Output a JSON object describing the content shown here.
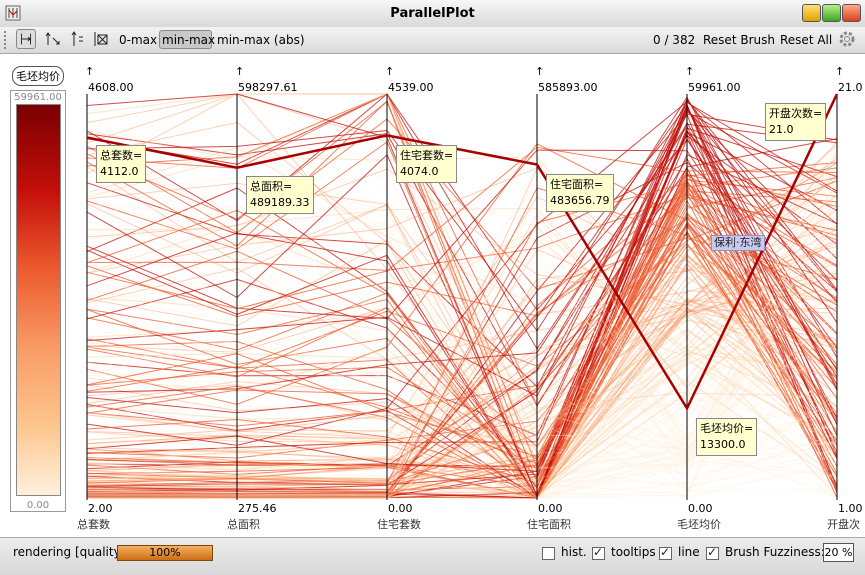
{
  "window": {
    "title": "ParallelPlot"
  },
  "toolbar": {
    "icons": [
      "axis-mode-icon",
      "brush-up-icon",
      "brush-split-icon",
      "clear-brush-icon"
    ],
    "scale_options": [
      "0-max",
      "min-max",
      "min-max (abs)"
    ],
    "selected_scale": "min-max",
    "count": "0 / 382",
    "reset_brush": "Reset Brush",
    "reset_all": "Reset All"
  },
  "legend": {
    "title": "毛坯均价",
    "max": "59961.00",
    "min": "0.00",
    "colors": [
      "#7a0000",
      "#c40f0a",
      "#ec5a2e",
      "#f99a64",
      "#fdc58d",
      "#fff0dc"
    ]
  },
  "axes": [
    {
      "name": "总套数",
      "max": "4608.00",
      "min": "2.00"
    },
    {
      "name": "总面积",
      "max": "598297.61",
      "min": "275.46"
    },
    {
      "name": "住宅套数",
      "max": "4539.00",
      "min": "0.00"
    },
    {
      "name": "住宅面积",
      "max": "585893.00",
      "min": "0.00"
    },
    {
      "name": "毛坯均价",
      "max": "59961.00",
      "min": "0.00"
    },
    {
      "name": "开盘次",
      "max": "21.0",
      "min": "1.00"
    }
  ],
  "highlight": {
    "label": "保利·东湾",
    "values": [
      4112,
      489189.33,
      4074,
      483656.79,
      13300,
      21
    ],
    "tooltips": [
      {
        "label": "总套数=",
        "value": "4112.0"
      },
      {
        "label": "总面积=",
        "value": "489189.33"
      },
      {
        "label": "住宅套数=",
        "value": "4074.0"
      },
      {
        "label": "住宅面积=",
        "value": "483656.79"
      },
      {
        "label": "毛坯均价=",
        "value": "13300.0"
      },
      {
        "label": "开盘次数=",
        "value": "21.0"
      }
    ]
  },
  "status": {
    "rendering_label": "rendering [quality]",
    "progress": "100%",
    "hist": {
      "label": "hist.",
      "checked": false
    },
    "tooltips": {
      "label": "tooltips",
      "checked": true
    },
    "line": {
      "label": "line",
      "checked": true
    },
    "brush_fuzziness_label": "Brush Fuzziness:",
    "brush_fuzziness_value": "20 %"
  }
}
